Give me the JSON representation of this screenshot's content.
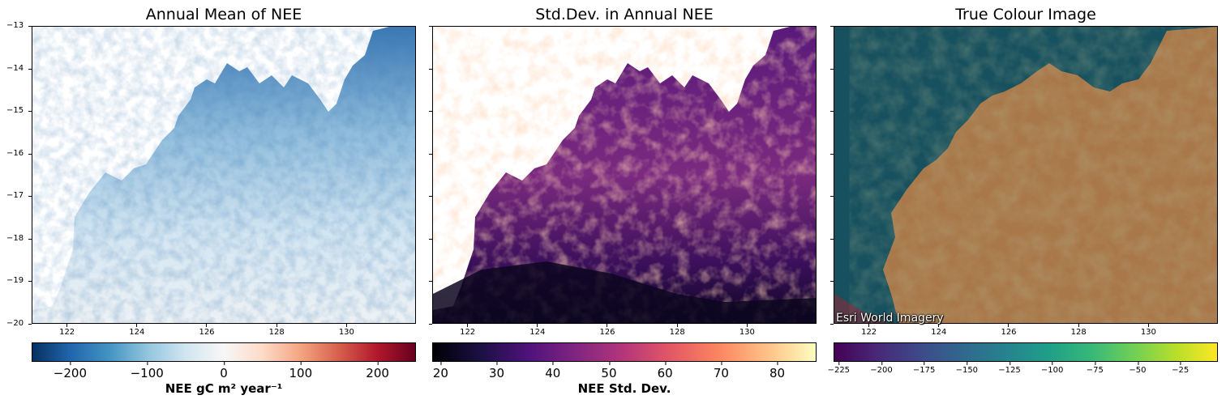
{
  "chart_data": [
    {
      "type": "heatmap",
      "title": "Annual Mean of NEE",
      "x_ticks": [
        "122",
        "124",
        "126",
        "128",
        "130"
      ],
      "x_tick_values": [
        122,
        124,
        126,
        128,
        130
      ],
      "y_ticks": [
        "−13",
        "−14",
        "−15",
        "−16",
        "−17",
        "−18",
        "−19",
        "−20"
      ],
      "y_tick_values": [
        -13,
        -14,
        -15,
        -16,
        -17,
        -18,
        -19,
        -20
      ],
      "xlim": [
        121.0,
        132.0
      ],
      "ylim": [
        -20,
        -13
      ],
      "colormap": "RdBu_r",
      "colorbar": {
        "label": "NEE gC m² year⁻¹",
        "range": [
          -250,
          250
        ],
        "ticks": [
          "−200",
          "−100",
          "0",
          "100",
          "200"
        ],
        "tick_values": [
          -200,
          -100,
          0,
          100,
          200
        ]
      }
    },
    {
      "type": "heatmap",
      "title": "Std.Dev. in Annual NEE",
      "x_ticks": [
        "122",
        "124",
        "126",
        "128",
        "130"
      ],
      "x_tick_values": [
        122,
        124,
        126,
        128,
        130
      ],
      "xlim": [
        121.0,
        132.0
      ],
      "ylim": [
        -20,
        -13
      ],
      "colormap": "magma",
      "colorbar": {
        "label": "NEE Std. Dev.",
        "range": [
          18.5,
          87
        ],
        "ticks": [
          "20",
          "30",
          "40",
          "50",
          "60",
          "70",
          "80"
        ],
        "tick_values": [
          20,
          30,
          40,
          50,
          60,
          70,
          80
        ]
      }
    },
    {
      "type": "image",
      "title": "True Colour Image",
      "x_ticks": [
        "122",
        "124",
        "126",
        "128",
        "130"
      ],
      "x_tick_values": [
        122,
        124,
        126,
        128,
        130
      ],
      "xlim": [
        121.0,
        132.0
      ],
      "ylim": [
        -20,
        -13
      ],
      "attribution": "Esri World Imagery",
      "colormap": "viridis",
      "colorbar": {
        "range": [
          -228,
          -3
        ],
        "ticks": [
          "−225",
          "−200",
          "−175",
          "−150",
          "−125",
          "−100",
          "−75",
          "−50",
          "−25"
        ],
        "tick_values": [
          -225,
          -200,
          -175,
          -150,
          -125,
          -100,
          -75,
          -50,
          -25
        ]
      }
    }
  ],
  "colors": {
    "ocean_dark": "#124a58",
    "land_rust": "#a9784a",
    "mean_dark_blue": "#1f5f99",
    "mean_light": "#dbe9f4",
    "std_dark": "#120c2c",
    "std_purple": "#4b1777",
    "std_bright": "#fbb177"
  }
}
